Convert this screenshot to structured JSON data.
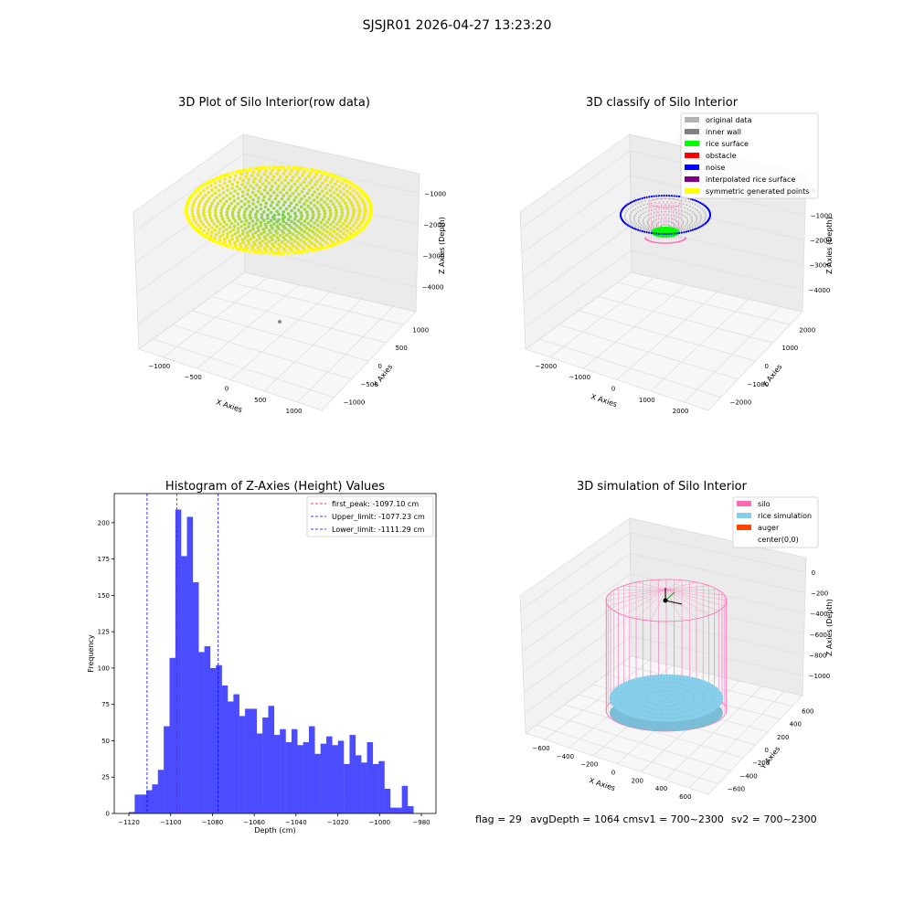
{
  "figure": {
    "suptitle": "SJSJR01 2026-04-27 13:23:20",
    "footer": {
      "flag": "flag = 29",
      "avg": "avgDepth = 1064 cmsv1 = 700~2300",
      "sv2": "sv2 = 700~2300"
    }
  },
  "colors": {
    "original": "#b3b3b3",
    "inner_wall": "#808080",
    "rice_surface": "#00ff00",
    "obstacle": "#ff0000",
    "noise": "#0000ff",
    "interpolated": "#800080",
    "symmetric": "#ffff00",
    "hist_bar": "#4c4cff",
    "peak_line": "#ff0000",
    "limit_line": "#0000ff",
    "silo": "#ff69b4",
    "rice_sim": "#87ceeb",
    "auger": "#ff4500",
    "pane": "#f2f2f2",
    "pane_edge": "#d9d9d9"
  },
  "chart_data": [
    {
      "type": "scatter",
      "projection": "3d",
      "title": "3D Plot of Silo Interior(row data)",
      "xlabel": "X Axies",
      "ylabel": "Y Axies",
      "zlabel": "Z Axies (Depth)",
      "x_ticks": [
        "−1000",
        "−500",
        "0",
        "500",
        "1000"
      ],
      "y_ticks": [
        "−1000",
        "−500",
        "0",
        "500",
        "1000"
      ],
      "z_ticks": [
        "−1000",
        "−2000",
        "−3000",
        "−4000"
      ],
      "surface": {
        "shape": "dish",
        "radius": 1000,
        "rim_depth": -1000,
        "center_depth": -1800,
        "colormap": "viridis-to-yellow"
      },
      "outlier": {
        "x": 150,
        "y": -300,
        "z": -4400
      }
    },
    {
      "type": "scatter",
      "projection": "3d",
      "title": "3D classify of Silo Interior",
      "xlabel": "X Axies",
      "ylabel": "Y Axies",
      "zlabel": "Z Axies (Depth)",
      "x_ticks": [
        "−2000",
        "−1000",
        "0",
        "1000",
        "2000"
      ],
      "y_ticks": [
        "−2000",
        "−1000",
        "0",
        "1000",
        "2000"
      ],
      "z_ticks": [
        "0",
        "−1000",
        "−2000",
        "−3000",
        "−4000"
      ],
      "legend": [
        "original data",
        "inner wall",
        "rice surface",
        "obstacle",
        "noise",
        "interpolated rice surface",
        "symmetric generated points"
      ],
      "legend_loc": "upper right"
    },
    {
      "type": "bar",
      "title": "Histogram of Z-Axies (Height) Values",
      "xlabel": "Depth (cm)",
      "ylabel": "Frequency",
      "x_ticks": [
        "−1120",
        "−1100",
        "−1080",
        "−1060",
        "−1040",
        "−1020",
        "−1000",
        "−980"
      ],
      "x_tick_values": [
        -1120,
        -1100,
        -1080,
        -1060,
        -1040,
        -1020,
        -1000,
        -980
      ],
      "y_ticks": [
        "0",
        "25",
        "50",
        "75",
        "100",
        "125",
        "150",
        "175",
        "200"
      ],
      "y_tick_values": [
        0,
        25,
        50,
        75,
        100,
        125,
        150,
        175,
        200
      ],
      "xlim": [
        -1127,
        -973
      ],
      "ylim": [
        0,
        220
      ],
      "bin_start": -1120,
      "bin_width": 2.78,
      "values": [
        1,
        13,
        13,
        16,
        20,
        30,
        60,
        107,
        209,
        177,
        204,
        159,
        111,
        115,
        100,
        102,
        88,
        77,
        82,
        67,
        72,
        72,
        55,
        66,
        74,
        54,
        58,
        49,
        58,
        47,
        49,
        60,
        41,
        48,
        53,
        47,
        50,
        34,
        54,
        40,
        35,
        49,
        34,
        36,
        17,
        4,
        4,
        19,
        5
      ],
      "vlines": [
        {
          "x": -1097.1,
          "label": "first_peak: -1097.10 cm",
          "color": "#ff0000"
        },
        {
          "x": -1077.23,
          "label": "Upper_limit: -1077.23 cm",
          "color": "#0000ff"
        },
        {
          "x": -1111.29,
          "label": "Lower_limit: -1111.29 cm",
          "color": "#0000ff"
        }
      ],
      "legend_loc": "upper right"
    },
    {
      "type": "scatter",
      "projection": "3d",
      "title": "3D simulation of Silo Interior",
      "xlabel": "X Axies",
      "ylabel": "Y Axies",
      "zlabel": "Z Axies (Depth)",
      "x_ticks": [
        "−600",
        "−400",
        "−200",
        "0",
        "200",
        "400",
        "600"
      ],
      "y_ticks": [
        "−600",
        "−400",
        "−200",
        "0",
        "200",
        "400",
        "600"
      ],
      "z_ticks": [
        "0",
        "−200",
        "−400",
        "−600",
        "−800",
        "−1000"
      ],
      "legend": [
        "silo",
        "rice simulation",
        "auger",
        "center(0,0)"
      ],
      "legend_loc": "upper right"
    }
  ]
}
